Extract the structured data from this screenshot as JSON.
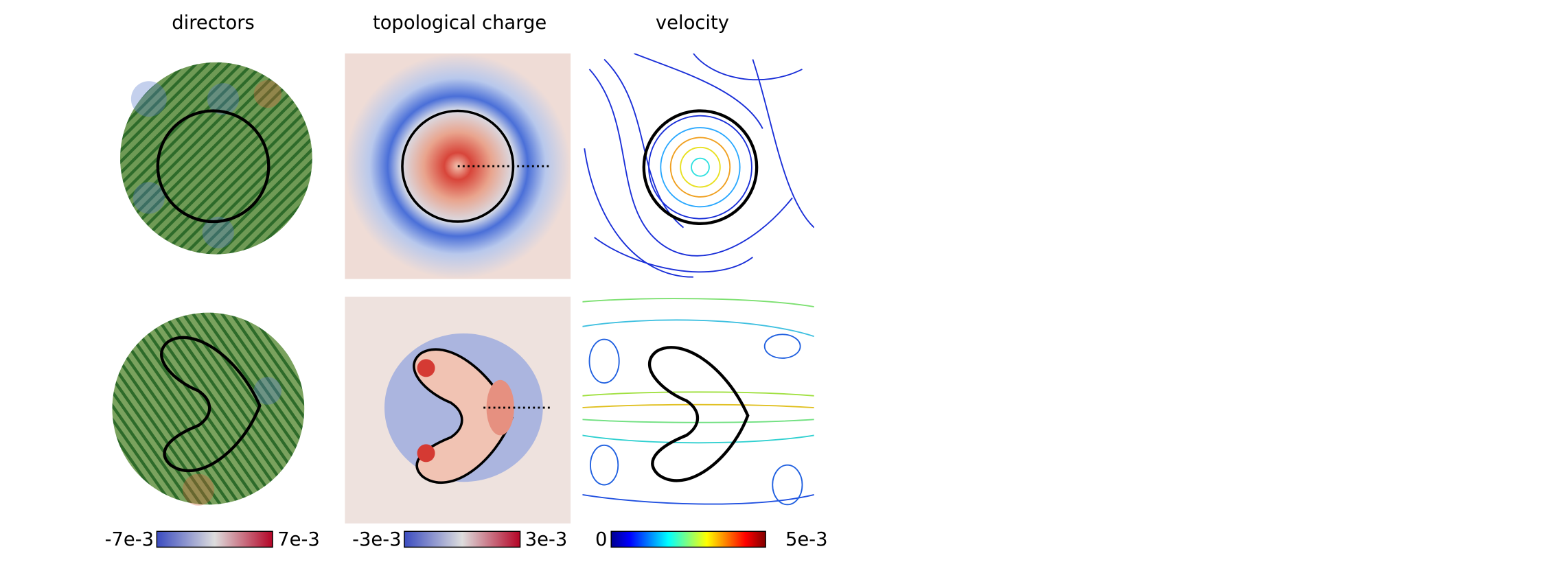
{
  "columns": [
    {
      "title": "directors"
    },
    {
      "title": "topological charge"
    },
    {
      "title": "velocity"
    }
  ],
  "colorbars": [
    {
      "min_label": "-7e-3",
      "max_label": "7e-3"
    },
    {
      "min_label": "-3e-3",
      "max_label": "3e-3"
    },
    {
      "min_label": "0",
      "max_label": "5e-3"
    }
  ]
}
